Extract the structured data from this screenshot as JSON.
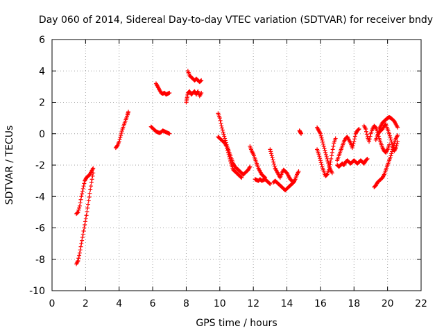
{
  "chart_data": {
    "type": "scatter",
    "title": "Day 060 of 2014, Sidereal Day-to-day VTEC variation (SDTVAR) for receiver bndy",
    "xlabel": "GPS time / hours",
    "ylabel": "SDTVAR / TECUs",
    "xlim": [
      0,
      22
    ],
    "ylim": [
      -10,
      6
    ],
    "xticks": [
      0,
      2,
      4,
      6,
      8,
      10,
      12,
      14,
      16,
      18,
      20,
      22
    ],
    "yticks": [
      -10,
      -8,
      -6,
      -4,
      -2,
      0,
      2,
      4,
      6
    ],
    "grid": true,
    "marker": "+",
    "color": "#ff0000",
    "series": [
      {
        "name": "SDTVAR",
        "segments": [
          [
            [
              1.45,
              -5.1
            ],
            [
              1.55,
              -5.0
            ],
            [
              1.65,
              -4.6
            ],
            [
              1.75,
              -4.0
            ],
            [
              1.85,
              -3.5
            ],
            [
              1.95,
              -3.0
            ],
            [
              2.05,
              -2.8
            ],
            [
              2.15,
              -2.7
            ],
            [
              2.25,
              -2.6
            ],
            [
              2.35,
              -2.4
            ],
            [
              2.45,
              -2.2
            ]
          ],
          [
            [
              1.45,
              -8.3
            ],
            [
              1.55,
              -8.1
            ],
            [
              1.65,
              -7.6
            ],
            [
              1.75,
              -7.0
            ],
            [
              1.85,
              -6.4
            ],
            [
              1.95,
              -5.8
            ],
            [
              2.05,
              -5.2
            ],
            [
              2.15,
              -4.5
            ],
            [
              2.25,
              -3.8
            ],
            [
              2.35,
              -3.1
            ],
            [
              2.45,
              -2.5
            ]
          ],
          [
            [
              3.8,
              -0.9
            ],
            [
              3.9,
              -0.75
            ],
            [
              4.0,
              -0.5
            ],
            [
              4.1,
              -0.1
            ],
            [
              4.2,
              0.3
            ],
            [
              4.3,
              0.6
            ],
            [
              4.4,
              0.9
            ],
            [
              4.5,
              1.2
            ],
            [
              4.55,
              1.4
            ]
          ],
          [
            [
              5.9,
              0.45
            ],
            [
              6.0,
              0.35
            ],
            [
              6.1,
              0.25
            ],
            [
              6.2,
              0.15
            ],
            [
              6.3,
              0.1
            ],
            [
              6.4,
              0.05
            ],
            [
              6.5,
              0.1
            ],
            [
              6.6,
              0.2
            ],
            [
              6.7,
              0.15
            ],
            [
              6.8,
              0.1
            ],
            [
              6.9,
              0.05
            ],
            [
              7.0,
              0.0
            ]
          ],
          [
            [
              6.2,
              3.2
            ],
            [
              6.3,
              3.0
            ],
            [
              6.4,
              2.8
            ],
            [
              6.5,
              2.6
            ],
            [
              6.6,
              2.55
            ],
            [
              6.7,
              2.6
            ],
            [
              6.8,
              2.5
            ],
            [
              6.9,
              2.55
            ],
            [
              7.0,
              2.6
            ]
          ],
          [
            [
              8.0,
              2.0
            ],
            [
              8.05,
              2.3
            ],
            [
              8.1,
              2.6
            ],
            [
              8.2,
              2.7
            ],
            [
              8.3,
              2.5
            ],
            [
              8.4,
              2.6
            ],
            [
              8.5,
              2.7
            ],
            [
              8.6,
              2.5
            ],
            [
              8.7,
              2.7
            ],
            [
              8.8,
              2.4
            ],
            [
              8.9,
              2.6
            ]
          ],
          [
            [
              8.1,
              4.0
            ],
            [
              8.2,
              3.7
            ],
            [
              8.3,
              3.6
            ],
            [
              8.4,
              3.5
            ],
            [
              8.5,
              3.4
            ],
            [
              8.6,
              3.5
            ],
            [
              8.7,
              3.4
            ],
            [
              8.8,
              3.3
            ],
            [
              8.9,
              3.4
            ]
          ],
          [
            [
              9.9,
              1.3
            ],
            [
              10.0,
              1.0
            ],
            [
              10.1,
              0.5
            ],
            [
              10.2,
              0.1
            ],
            [
              10.3,
              -0.3
            ],
            [
              10.4,
              -0.7
            ],
            [
              10.5,
              -1.0
            ],
            [
              10.6,
              -1.3
            ],
            [
              10.7,
              -1.6
            ],
            [
              10.8,
              -1.9
            ],
            [
              10.9,
              -2.1
            ],
            [
              11.0,
              -2.2
            ],
            [
              11.1,
              -2.3
            ],
            [
              11.2,
              -2.4
            ],
            [
              11.3,
              -2.5
            ],
            [
              11.4,
              -2.6
            ],
            [
              11.5,
              -2.5
            ],
            [
              11.6,
              -2.4
            ],
            [
              11.7,
              -2.3
            ],
            [
              11.8,
              -2.1
            ]
          ],
          [
            [
              9.9,
              -0.2
            ],
            [
              10.0,
              -0.3
            ],
            [
              10.1,
              -0.4
            ],
            [
              10.2,
              -0.5
            ],
            [
              10.3,
              -0.6
            ],
            [
              10.4,
              -0.8
            ],
            [
              10.5,
              -1.2
            ],
            [
              10.6,
              -1.6
            ],
            [
              10.7,
              -2.0
            ],
            [
              10.8,
              -2.3
            ],
            [
              10.9,
              -2.4
            ],
            [
              11.0,
              -2.5
            ],
            [
              11.1,
              -2.6
            ],
            [
              11.2,
              -2.7
            ],
            [
              11.3,
              -2.8
            ]
          ],
          [
            [
              11.8,
              -0.8
            ],
            [
              11.9,
              -1.1
            ],
            [
              12.0,
              -1.3
            ],
            [
              12.1,
              -1.6
            ],
            [
              12.2,
              -1.9
            ],
            [
              12.3,
              -2.2
            ],
            [
              12.4,
              -2.4
            ],
            [
              12.5,
              -2.6
            ],
            [
              12.6,
              -2.7
            ],
            [
              12.7,
              -2.8
            ]
          ],
          [
            [
              12.1,
              -2.9
            ],
            [
              12.2,
              -2.95
            ],
            [
              12.3,
              -3.0
            ],
            [
              12.4,
              -2.9
            ],
            [
              12.5,
              -3.0
            ],
            [
              12.6,
              -2.95
            ],
            [
              12.7,
              -2.9
            ],
            [
              12.8,
              -3.0
            ],
            [
              12.9,
              -3.1
            ],
            [
              13.0,
              -3.2
            ]
          ],
          [
            [
              13.0,
              -1.0
            ],
            [
              13.1,
              -1.4
            ],
            [
              13.2,
              -1.8
            ],
            [
              13.3,
              -2.2
            ],
            [
              13.4,
              -2.4
            ],
            [
              13.5,
              -2.6
            ],
            [
              13.6,
              -2.8
            ],
            [
              13.7,
              -2.5
            ],
            [
              13.8,
              -2.3
            ],
            [
              13.9,
              -2.4
            ],
            [
              14.0,
              -2.5
            ],
            [
              14.1,
              -2.7
            ],
            [
              14.2,
              -2.9
            ],
            [
              14.3,
              -3.0
            ],
            [
              14.4,
              -3.1
            ]
          ],
          [
            [
              13.2,
              -3.1
            ],
            [
              13.3,
              -3.0
            ],
            [
              13.4,
              -3.1
            ],
            [
              13.5,
              -3.2
            ],
            [
              13.6,
              -3.3
            ],
            [
              13.7,
              -3.4
            ],
            [
              13.8,
              -3.5
            ],
            [
              13.9,
              -3.6
            ],
            [
              14.0,
              -3.5
            ],
            [
              14.1,
              -3.4
            ],
            [
              14.2,
              -3.3
            ],
            [
              14.3,
              -3.2
            ],
            [
              14.4,
              -3.1
            ],
            [
              14.5,
              -2.9
            ],
            [
              14.6,
              -2.6
            ],
            [
              14.7,
              -2.4
            ]
          ],
          [
            [
              14.75,
              0.2
            ],
            [
              14.8,
              0.1
            ],
            [
              14.85,
              0.0
            ]
          ],
          [
            [
              15.8,
              0.4
            ],
            [
              15.9,
              0.2
            ],
            [
              16.0,
              0.0
            ],
            [
              16.1,
              -0.4
            ],
            [
              16.2,
              -0.8
            ],
            [
              16.3,
              -1.2
            ],
            [
              16.4,
              -1.6
            ],
            [
              16.5,
              -2.0
            ],
            [
              16.6,
              -2.3
            ],
            [
              16.7,
              -2.5
            ]
          ],
          [
            [
              15.8,
              -1.0
            ],
            [
              15.9,
              -1.3
            ],
            [
              16.0,
              -1.7
            ],
            [
              16.1,
              -2.1
            ],
            [
              16.2,
              -2.4
            ],
            [
              16.3,
              -2.7
            ],
            [
              16.4,
              -2.6
            ],
            [
              16.5,
              -2.3
            ],
            [
              16.6,
              -1.8
            ],
            [
              16.7,
              -1.2
            ],
            [
              16.8,
              -0.6
            ],
            [
              16.9,
              -0.3
            ]
          ],
          [
            [
              17.0,
              -1.7
            ],
            [
              17.1,
              -1.4
            ],
            [
              17.2,
              -1.1
            ],
            [
              17.3,
              -0.8
            ],
            [
              17.4,
              -0.5
            ],
            [
              17.5,
              -0.3
            ],
            [
              17.6,
              -0.2
            ],
            [
              17.7,
              -0.4
            ],
            [
              17.8,
              -0.6
            ],
            [
              17.9,
              -0.9
            ],
            [
              18.0,
              -0.5
            ],
            [
              18.1,
              0.0
            ],
            [
              18.2,
              0.2
            ],
            [
              18.3,
              0.3
            ]
          ],
          [
            [
              17.0,
              -2.0
            ],
            [
              17.1,
              -2.1
            ],
            [
              17.2,
              -2.0
            ],
            [
              17.3,
              -1.9
            ],
            [
              17.4,
              -2.0
            ],
            [
              17.5,
              -1.8
            ],
            [
              17.6,
              -1.7
            ],
            [
              17.7,
              -1.8
            ],
            [
              17.8,
              -1.9
            ],
            [
              17.9,
              -1.8
            ],
            [
              18.0,
              -1.7
            ],
            [
              18.1,
              -1.8
            ],
            [
              18.2,
              -1.9
            ],
            [
              18.3,
              -1.8
            ],
            [
              18.4,
              -1.7
            ],
            [
              18.5,
              -1.8
            ],
            [
              18.6,
              -1.9
            ],
            [
              18.7,
              -1.7
            ],
            [
              18.8,
              -1.6
            ]
          ],
          [
            [
              18.6,
              0.5
            ],
            [
              18.7,
              0.3
            ],
            [
              18.8,
              -0.2
            ],
            [
              18.9,
              -0.5
            ],
            [
              19.0,
              0.0
            ],
            [
              19.1,
              0.3
            ],
            [
              19.2,
              0.5
            ],
            [
              19.3,
              0.4
            ],
            [
              19.4,
              0.1
            ],
            [
              19.5,
              -0.3
            ],
            [
              19.6,
              -0.6
            ],
            [
              19.7,
              -0.9
            ],
            [
              19.8,
              -1.1
            ],
            [
              19.9,
              -1.2
            ],
            [
              20.0,
              -1.0
            ],
            [
              20.1,
              -0.7
            ]
          ],
          [
            [
              19.2,
              -3.4
            ],
            [
              19.3,
              -3.3
            ],
            [
              19.4,
              -3.1
            ],
            [
              19.5,
              -3.0
            ],
            [
              19.6,
              -2.9
            ],
            [
              19.7,
              -2.8
            ],
            [
              19.8,
              -2.6
            ],
            [
              19.9,
              -2.3
            ],
            [
              20.0,
              -2.0
            ],
            [
              20.1,
              -1.7
            ],
            [
              20.2,
              -1.4
            ],
            [
              20.3,
              -1.0
            ],
            [
              20.4,
              -0.6
            ],
            [
              20.5,
              -0.3
            ],
            [
              20.6,
              -0.1
            ]
          ],
          [
            [
              19.5,
              0.3
            ],
            [
              19.6,
              0.5
            ],
            [
              19.7,
              0.7
            ],
            [
              19.8,
              0.8
            ],
            [
              19.9,
              0.9
            ],
            [
              20.0,
              1.0
            ],
            [
              20.1,
              1.05
            ],
            [
              20.2,
              1.0
            ],
            [
              20.3,
              0.9
            ],
            [
              20.4,
              0.8
            ],
            [
              20.5,
              0.6
            ],
            [
              20.6,
              0.4
            ]
          ],
          [
            [
              19.3,
              -0.4
            ],
            [
              19.4,
              -0.1
            ],
            [
              19.5,
              0.1
            ],
            [
              19.6,
              0.2
            ],
            [
              19.7,
              0.3
            ],
            [
              19.8,
              0.5
            ],
            [
              19.9,
              0.6
            ],
            [
              20.0,
              0.3
            ],
            [
              20.1,
              0.0
            ],
            [
              20.2,
              -0.4
            ],
            [
              20.3,
              -0.8
            ],
            [
              20.4,
              -1.1
            ],
            [
              20.5,
              -0.9
            ],
            [
              20.6,
              -0.5
            ]
          ]
        ]
      }
    ]
  }
}
